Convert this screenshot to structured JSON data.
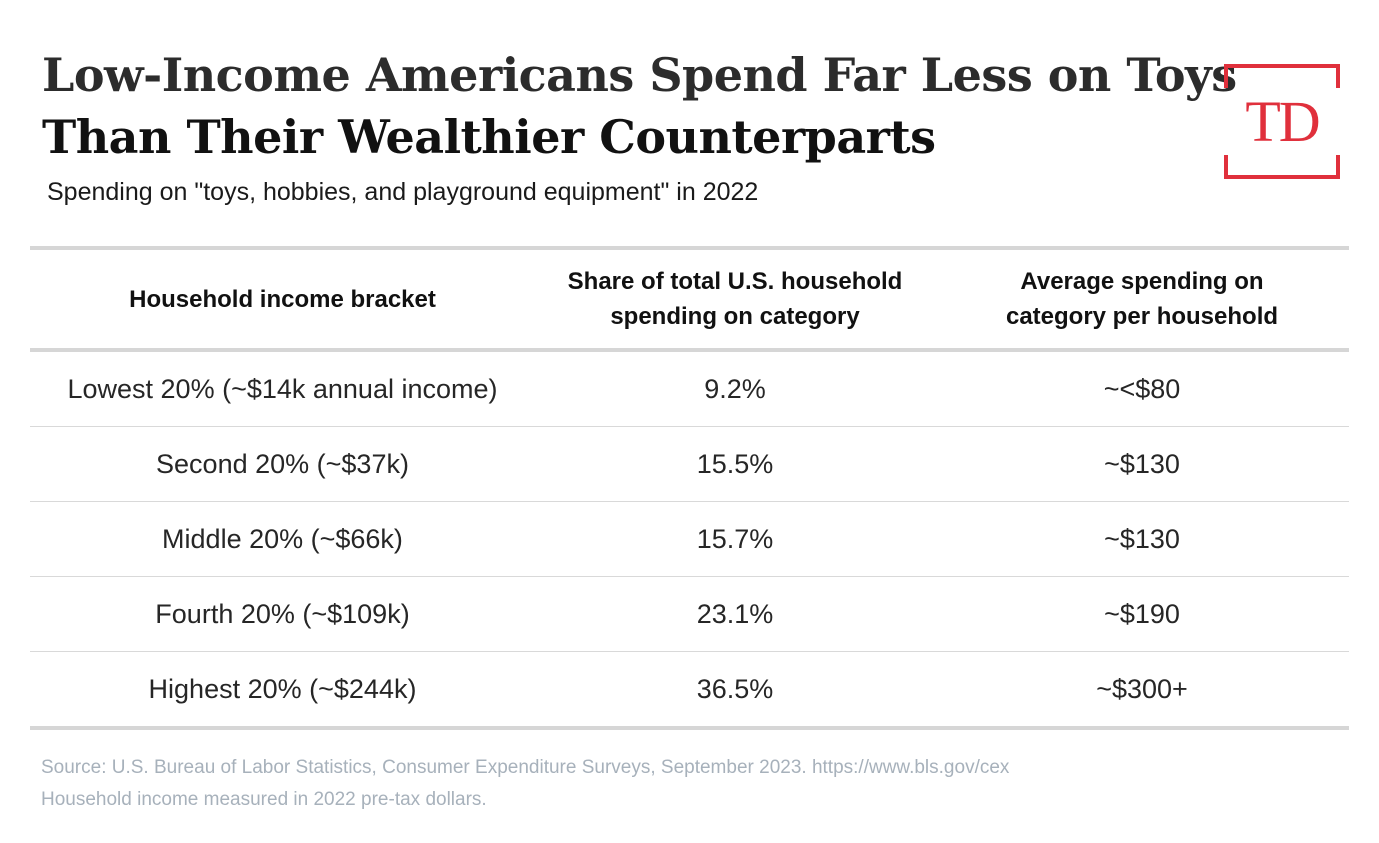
{
  "header": {
    "title_line_1": "Low-Income Americans Spend Far Less on Toys",
    "title_line_2": "Than Their Wealthier Counterparts",
    "subtitle": "Spending on \"toys, hobbies, and playground equipment\" in 2022"
  },
  "logo": {
    "text": "TD",
    "color": "#e0303c"
  },
  "table": {
    "columns": [
      {
        "lines": [
          "Household income bracket"
        ]
      },
      {
        "lines": [
          "Share of total U.S. household",
          "spending on category"
        ]
      },
      {
        "lines": [
          "Average spending on",
          "category per household"
        ]
      }
    ],
    "rows": [
      [
        "Lowest 20% (~$14k annual income)",
        "9.2%",
        "~<$80"
      ],
      [
        "Second 20% (~$37k)",
        "15.5%",
        "~$130"
      ],
      [
        "Middle 20% (~$66k)",
        "15.7%",
        "~$130"
      ],
      [
        "Fourth 20% (~$109k)",
        "23.1%",
        "~$190"
      ],
      [
        "Highest 20% (~$244k)",
        "36.5%",
        "~$300+"
      ]
    ]
  },
  "footer": {
    "source": "Source: U.S. Bureau of Labor Statistics, Consumer Expenditure Surveys, September 2023.  https://www.bls.gov/cex",
    "note": "Household income measured in 2022 pre-tax dollars."
  },
  "chart_data": {
    "type": "table",
    "title": "Low-Income Americans Spend Far Less on Toys Than Their Wealthier Counterparts",
    "subtitle": "Spending on \"toys, hobbies, and playground equipment\" in 2022",
    "columns": [
      "Household income bracket",
      "Share of total U.S. household spending on category",
      "Average spending on category per household"
    ],
    "categories": [
      "Lowest 20% (~$14k annual income)",
      "Second 20% (~$37k)",
      "Middle 20% (~$66k)",
      "Fourth 20% (~$109k)",
      "Highest 20% (~$244k)"
    ],
    "series": [
      {
        "name": "Share of total U.S. household spending on category",
        "values": [
          9.2,
          15.5,
          15.7,
          23.1,
          36.5
        ],
        "unit": "%"
      },
      {
        "name": "Average spending on category per household",
        "values": [
          "~<$80",
          "~$130",
          "~$130",
          "~$190",
          "~$300+"
        ]
      }
    ]
  }
}
